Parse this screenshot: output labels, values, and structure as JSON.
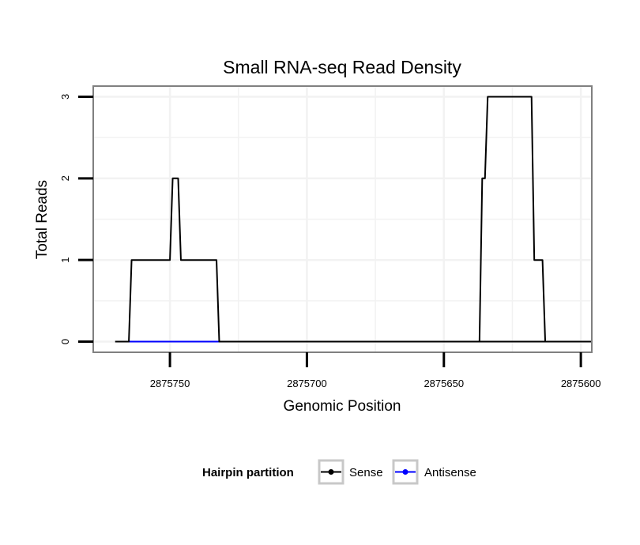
{
  "chart_data": {
    "type": "line",
    "title": "Small RNA-seq Read Density",
    "xlabel": "Genomic Position",
    "ylabel": "Total Reads",
    "x_reversed": true,
    "xlim": [
      2875778,
      2875596
    ],
    "ylim": [
      -0.13,
      3.13
    ],
    "x_ticks": [
      2875750,
      2875700,
      2875650,
      2875600
    ],
    "x_tick_labels": [
      "2875750",
      "2875700",
      "2875650",
      "2875600"
    ],
    "y_ticks": [
      0,
      1,
      2,
      3
    ],
    "y_tick_labels": [
      "0",
      "1",
      "2",
      "3"
    ],
    "grid": true,
    "legend": {
      "title": "Hairpin partition",
      "position": "bottom",
      "entries": [
        {
          "name": "Sense",
          "color": "#000000"
        },
        {
          "name": "Antisense",
          "color": "#0000ff"
        }
      ]
    },
    "series": [
      {
        "name": "Sense",
        "color": "#000000",
        "x": [
          2875770,
          2875765,
          2875764,
          2875750,
          2875749,
          2875747,
          2875746,
          2875745,
          2875744,
          2875733,
          2875732,
          2875596,
          2875637,
          2875636,
          2875635,
          2875634,
          2875633,
          2875618,
          2875617,
          2875614,
          2875613,
          2875608
        ],
        "y": [
          0,
          0,
          1,
          1,
          2,
          2,
          1,
          1,
          1,
          1,
          0,
          0,
          0,
          2,
          2,
          3,
          3,
          3,
          1,
          1,
          0,
          0
        ],
        "segments": [
          [
            [
              2875770,
              0
            ],
            [
              2875765,
              0
            ],
            [
              2875764,
              1
            ],
            [
              2875750,
              1
            ],
            [
              2875749,
              2
            ],
            [
              2875747,
              2
            ],
            [
              2875746,
              1
            ],
            [
              2875733,
              1
            ],
            [
              2875732,
              0
            ],
            [
              2875596,
              0
            ]
          ],
          [
            [
              2875637,
              0
            ],
            [
              2875636,
              2
            ],
            [
              2875635,
              2
            ],
            [
              2875634,
              3
            ],
            [
              2875618,
              3
            ],
            [
              2875617,
              1
            ],
            [
              2875614,
              1
            ],
            [
              2875613,
              0
            ]
          ]
        ]
      },
      {
        "name": "Antisense",
        "color": "#0000ff",
        "segments": [
          [
            [
              2875765,
              0
            ],
            [
              2875732,
              0
            ]
          ],
          [
            [
              2875637,
              0
            ],
            [
              2875613,
              0
            ]
          ]
        ]
      }
    ]
  }
}
